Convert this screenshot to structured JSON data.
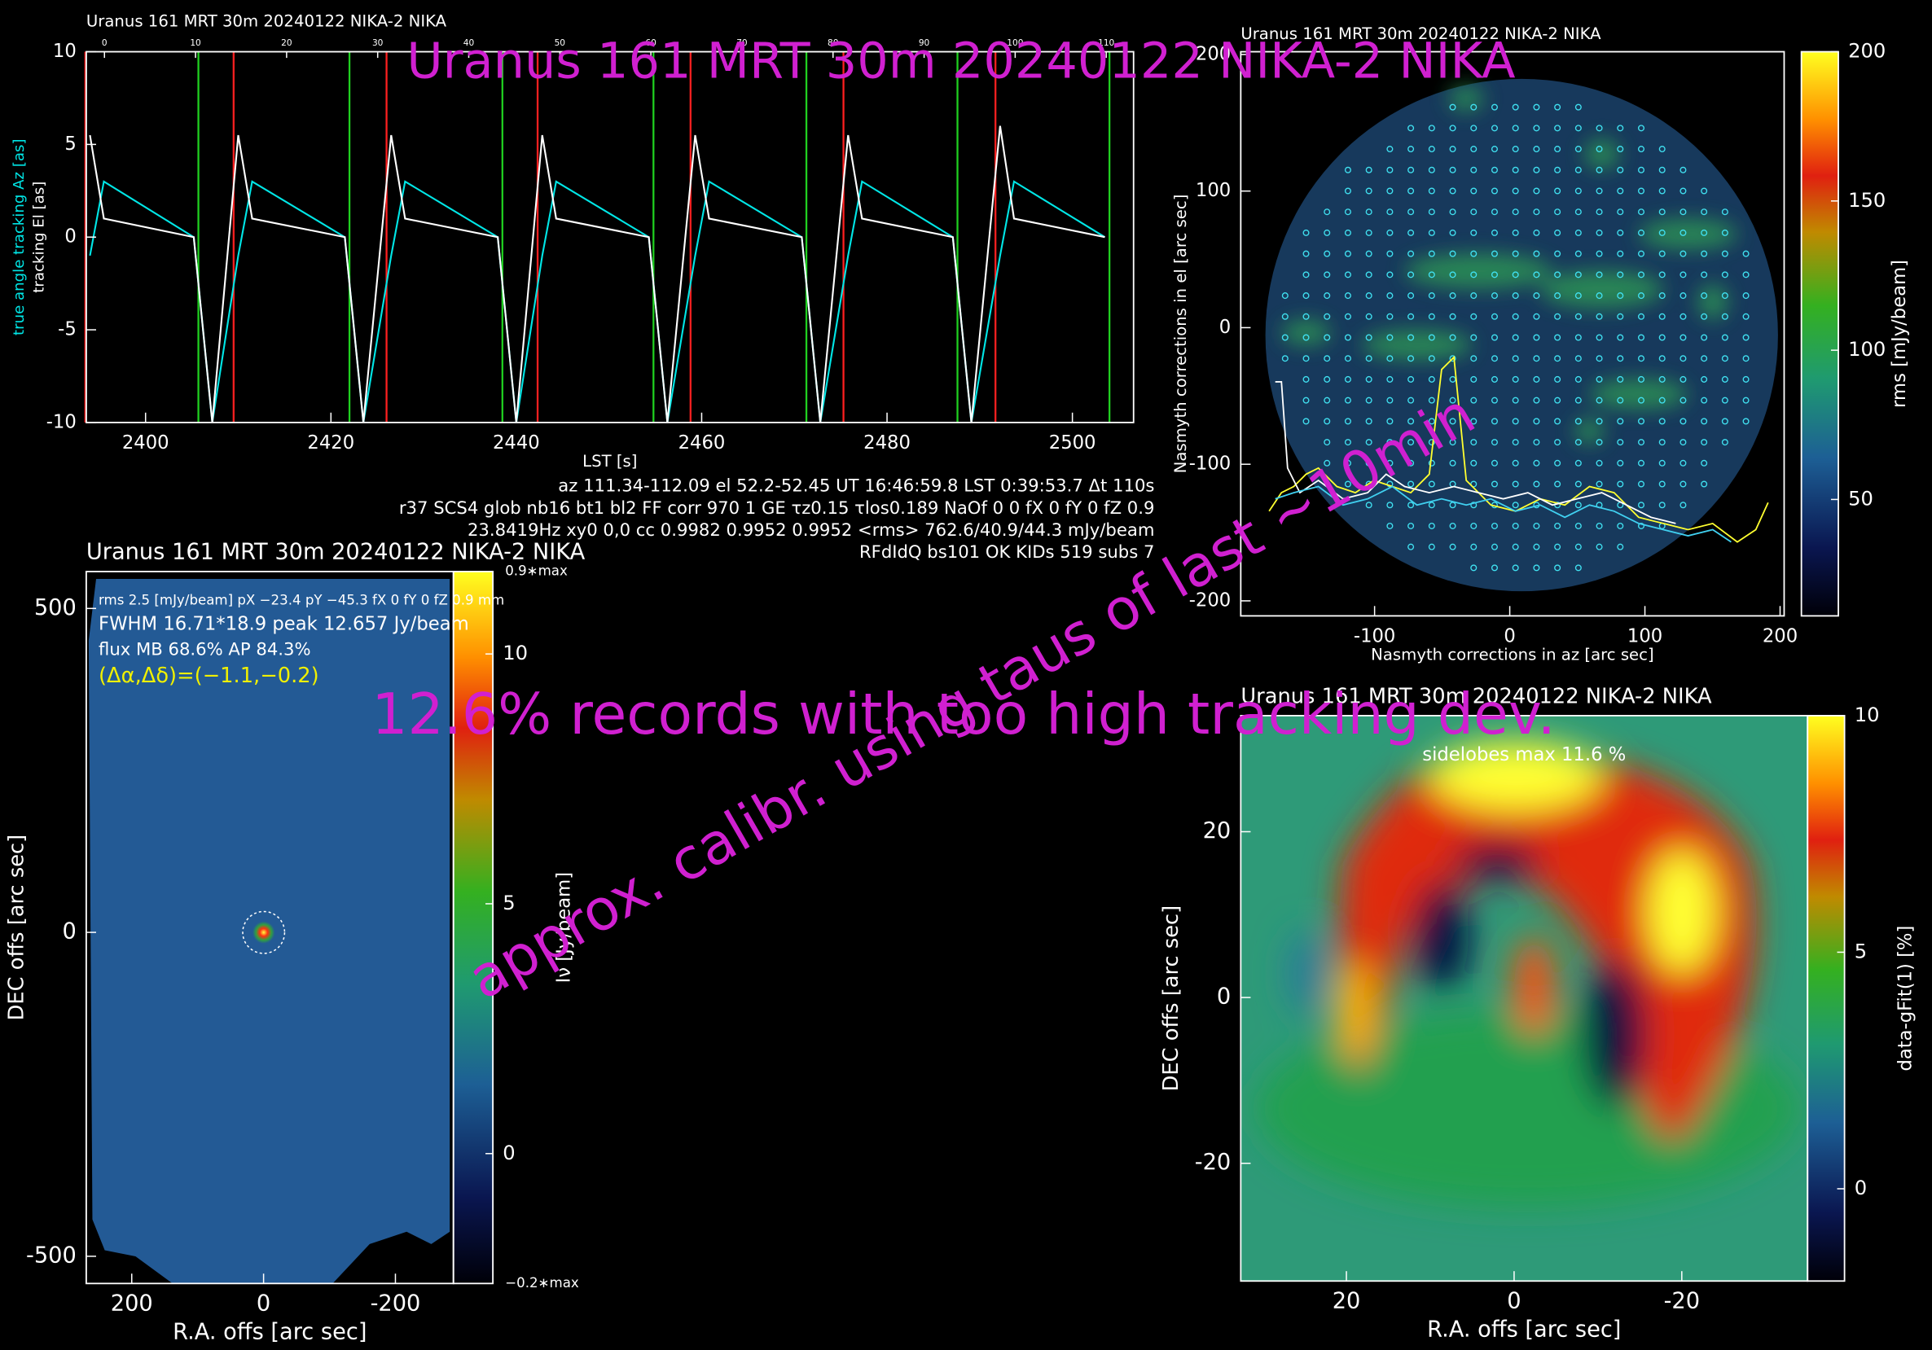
{
  "chart_data": [
    {
      "type": "line",
      "title": "Uranus   161 MRT 30m  20240122 NIKA-2 NIKA",
      "xlabel": "LST [s]",
      "xlim": [
        2393.6,
        2506.6
      ],
      "xticks": [
        2400,
        2420,
        2440,
        2460,
        2480,
        2500
      ],
      "ylim": [
        -10,
        10
      ],
      "yticks": [
        -10,
        -5,
        0,
        5,
        10
      ],
      "x2lim": [
        -2,
        113
      ],
      "x2ticks": [
        0,
        10,
        20,
        30,
        40,
        50,
        60,
        70,
        80,
        90,
        100,
        110
      ],
      "x": [
        2394,
        2395.5,
        2405.2,
        2407.2,
        2410,
        2411.5,
        2421.5,
        2423.5,
        2426.5,
        2428,
        2438,
        2440,
        2442.8,
        2444.3,
        2454.3,
        2456.3,
        2459.3,
        2460.8,
        2470.8,
        2472.8,
        2475.8,
        2477.3,
        2487.1,
        2489.1,
        2492.2,
        2493.7,
        2503.5
      ],
      "series": [
        {
          "name": "true angle tracking Az [as]",
          "color": "#00e6e6",
          "values": [
            -1,
            3,
            0,
            -10,
            -1,
            3,
            0,
            -10,
            -1,
            3,
            0,
            -10,
            -1,
            3,
            0,
            -10,
            -1,
            3,
            0,
            -10,
            -1,
            3,
            0,
            -10,
            -1,
            3,
            0
          ]
        },
        {
          "name": "tracking El [as]",
          "color": "#ffffff",
          "values": [
            5.5,
            1,
            0,
            -10,
            5.5,
            1,
            0,
            -10,
            5.5,
            1,
            0,
            -10,
            5.5,
            1,
            0,
            -10,
            5.5,
            1,
            0,
            -10,
            5.5,
            1,
            0,
            -10,
            6,
            1,
            0
          ]
        }
      ],
      "scan_starts": {
        "color": "#ff2020",
        "values": [
          2393.5,
          2409.5,
          2426,
          2442.3,
          2458.8,
          2475.3,
          2491.7
        ]
      },
      "scan_ends": {
        "color": "#20d020",
        "values": [
          2405.7,
          2422,
          2438.5,
          2454.8,
          2471.3,
          2487.6,
          2504
        ]
      },
      "annotations": [
        {
          "text": "az 111.34-112.09 el 52.2-52.45 UT 16:46:59.8 LST 0:39:53.7 Δt 110s",
          "color": "#ffffff"
        },
        {
          "text": "r37 SCS4 glob nb16 bt1 bl2 FF corr 970 1 GE τz0.15 τlos0.189 NaOf 0 0 fX 0 fY 0 fZ 0.9",
          "color": "#ffffff"
        },
        {
          "text": "23.8419Hz xy0 0,0 cc 0.9982 0.9952 0.9952 <rms> 762.6/40.9/44.3 mJy/beam",
          "color": "#ffffff"
        },
        {
          "text": "RFdIdQ bs101 OK KIDs 519 subs 7",
          "color": "#ffffff"
        }
      ]
    },
    {
      "type": "heatmap",
      "title": "Uranus   161 MRT 30m  20240122 NIKA-2 NIKA",
      "xlabel": "Nasmyth corrections in az [arc sec]",
      "ylabel": "Nasmyth corrections in el [arc sec]",
      "xlim": [
        -199,
        203
      ],
      "xticks": [
        -100,
        0,
        100,
        200
      ],
      "ylim": [
        -211,
        202
      ],
      "yticks": [
        -200,
        -100,
        0,
        100,
        200
      ],
      "clim": [
        11,
        200
      ],
      "cticks": [
        50,
        100,
        150,
        200
      ],
      "clabel": "rms [mJy/beam]",
      "annotations": []
    },
    {
      "type": "heatmap",
      "title": "Uranus   161 MRT 30m  20240122 NIKA-2 NIKA",
      "xlabel": "R.A. offs [arc sec]",
      "ylabel": "DEC offs [arc sec]",
      "xlim": [
        269,
        -288
      ],
      "xticks": [
        200,
        0,
        -200
      ],
      "ylim": [
        -542,
        557
      ],
      "yticks": [
        -500,
        0,
        500
      ],
      "clim": [
        -2.6,
        11.65
      ],
      "cticks": [
        0,
        5,
        10
      ],
      "clabel": "Iν [Jy/beam]",
      "cbar_top_label": "0.9∗max",
      "cbar_bottom_label": "−0.2∗max",
      "annotations": [
        {
          "text": "rms 2.5 [mJy/beam] pX −23.4 pY −45.3 fX 0 fY 0 fZ 0.9 mm",
          "color": "#ffffff"
        },
        {
          "text": "FWHM 16.71*18.9 peak 12.657 Jy/beam",
          "color": "#ffffff"
        },
        {
          "text": "flux MB 68.6% AP 84.3%",
          "color": "#ffffff"
        },
        {
          "text": "(Δα,Δδ)=(−1.1,−0.2)",
          "color": "#f0f000"
        }
      ]
    },
    {
      "type": "heatmap",
      "title": "Uranus   161 MRT 30m  20240122 NIKA-2 NIKA",
      "xlabel": "R.A. offs [arc sec]",
      "ylabel": "DEC offs [arc sec]",
      "xlim": [
        32.6,
        -35
      ],
      "xticks": [
        20,
        0,
        -20
      ],
      "ylim": [
        -34.2,
        34
      ],
      "yticks": [
        -20,
        0,
        20
      ],
      "clim": [
        -1.95,
        10
      ],
      "cticks": [
        0,
        5,
        10
      ],
      "clabel": "data-gFit(1) [%]",
      "annotations": [
        {
          "text": "sidelobes max 11.6 %",
          "color": "#ffffff"
        }
      ]
    }
  ],
  "overlays": {
    "color": "#d020d0",
    "header": "Uranus   161 MRT 30m   20240122 NIKA-2 NIKA",
    "warning": "12.6% records with too high tracking dev.",
    "calibration": "approx. calibr. using taus of last ~10min"
  }
}
